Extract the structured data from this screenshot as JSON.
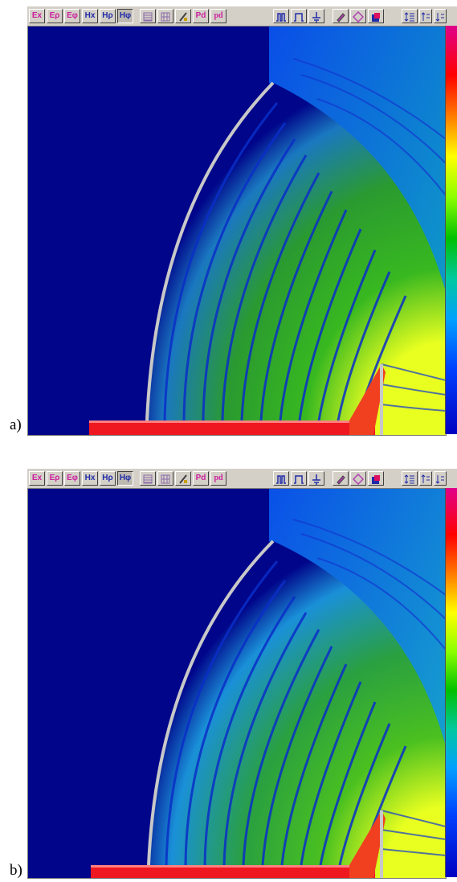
{
  "panels": [
    {
      "caption": "a)",
      "toolbar": {
        "field_buttons": [
          "Ex",
          "Eρ",
          "Eφ",
          "Hx",
          "Hρ",
          "Hφ"
        ],
        "pressed_field": "Hφ",
        "extra_text_buttons": [
          "Pd",
          "pd"
        ]
      }
    },
    {
      "caption": "b)",
      "toolbar": {
        "field_buttons": [
          "Ex",
          "Eρ",
          "Eφ",
          "Hx",
          "Hρ",
          "Hφ"
        ],
        "pressed_field": "Hφ",
        "extra_text_buttons": [
          "Pd",
          "pd"
        ]
      }
    }
  ],
  "icons": [
    "grid-icon",
    "mesh-icon",
    "material-icon",
    "pulse-icon",
    "step-icon",
    "ground-icon",
    "erase-icon",
    "shape-icon",
    "color-icon",
    "scale-up-icon",
    "scale-mid-icon",
    "scale-down-icon"
  ],
  "colors": {
    "background_field": "#00058a",
    "ui_face": "#d4d0c8",
    "field_label": "#cc1f9e",
    "h_label": "#1f2aa8"
  }
}
